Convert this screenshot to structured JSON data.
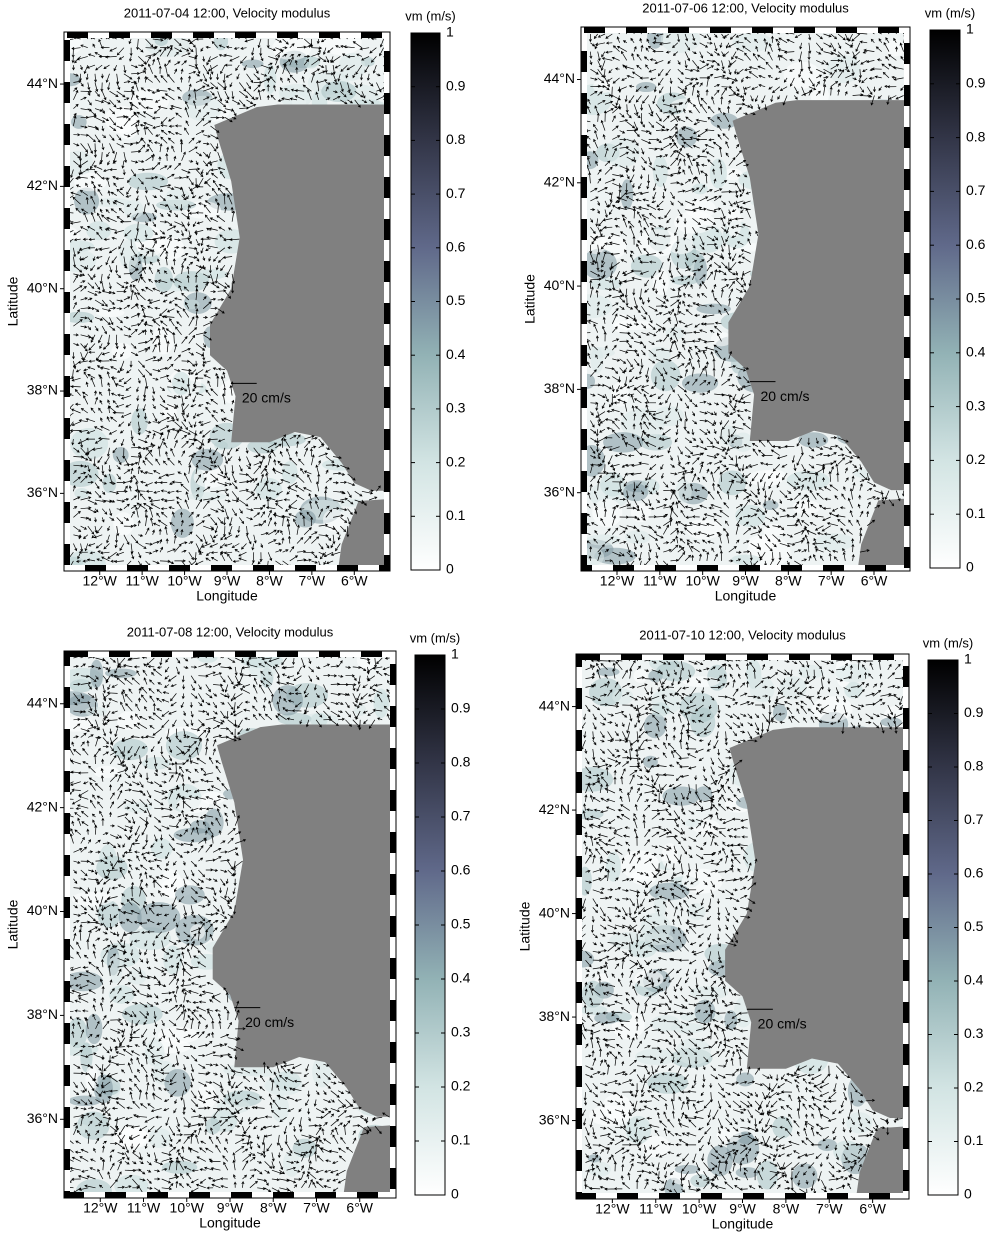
{
  "panels": [
    {
      "title": "2011-07-04 12:00, Velocity modulus",
      "colorbar_label": "vm (m/s)",
      "x_label": "Longitude",
      "y_label": "Latitude",
      "scale_label": "20 cm/s",
      "xlim": [
        -12.7,
        -5.3
      ],
      "ylim": [
        34.6,
        44.9
      ],
      "xticks": [
        {
          "value": -12,
          "label": "12°W"
        },
        {
          "value": -11,
          "label": "11°W"
        },
        {
          "value": -10,
          "label": "10°W"
        },
        {
          "value": -9,
          "label": "9°W"
        },
        {
          "value": -8,
          "label": "8°W"
        },
        {
          "value": -7,
          "label": "7°W"
        },
        {
          "value": -6,
          "label": "6°W"
        }
      ],
      "yticks": [
        {
          "value": 36,
          "label": "36°N"
        },
        {
          "value": 38,
          "label": "38°N"
        },
        {
          "value": 40,
          "label": "40°N"
        },
        {
          "value": 42,
          "label": "42°N"
        },
        {
          "value": 44,
          "label": "44°N"
        }
      ],
      "clim": [
        0,
        1
      ],
      "cticks": [
        0,
        0.1,
        0.2,
        0.3,
        0.4,
        0.5,
        0.6,
        0.7,
        0.8,
        0.9,
        1
      ]
    },
    {
      "title": "2011-07-06 12:00, Velocity modulus",
      "colorbar_label": "vm (m/s)",
      "x_label": "Longitude",
      "y_label": "Latitude",
      "scale_label": "20 cm/s",
      "xlim": [
        -12.7,
        -5.3
      ],
      "ylim": [
        34.6,
        44.9
      ],
      "xticks": [
        {
          "value": -12,
          "label": "12°W"
        },
        {
          "value": -11,
          "label": "11°W"
        },
        {
          "value": -10,
          "label": "10°W"
        },
        {
          "value": -9,
          "label": "9°W"
        },
        {
          "value": -8,
          "label": "8°W"
        },
        {
          "value": -7,
          "label": "7°W"
        },
        {
          "value": -6,
          "label": "6°W"
        }
      ],
      "yticks": [
        {
          "value": 36,
          "label": "36°N"
        },
        {
          "value": 38,
          "label": "38°N"
        },
        {
          "value": 40,
          "label": "40°N"
        },
        {
          "value": 42,
          "label": "42°N"
        },
        {
          "value": 44,
          "label": "44°N"
        }
      ],
      "clim": [
        0,
        1
      ],
      "cticks": [
        0,
        0.1,
        0.2,
        0.3,
        0.4,
        0.5,
        0.6,
        0.7,
        0.8,
        0.9,
        1
      ]
    },
    {
      "title": "2011-07-08 12:00, Velocity modulus",
      "colorbar_label": "vm (m/s)",
      "x_label": "Longitude",
      "y_label": "Latitude",
      "scale_label": "20 cm/s",
      "xlim": [
        -12.7,
        -5.3
      ],
      "ylim": [
        34.6,
        44.9
      ],
      "xticks": [
        {
          "value": -12,
          "label": "12°W"
        },
        {
          "value": -11,
          "label": "11°W"
        },
        {
          "value": -10,
          "label": "10°W"
        },
        {
          "value": -9,
          "label": "9°W"
        },
        {
          "value": -8,
          "label": "8°W"
        },
        {
          "value": -7,
          "label": "7°W"
        },
        {
          "value": -6,
          "label": "6°W"
        }
      ],
      "yticks": [
        {
          "value": 36,
          "label": "36°N"
        },
        {
          "value": 38,
          "label": "38°N"
        },
        {
          "value": 40,
          "label": "40°N"
        },
        {
          "value": 42,
          "label": "42°N"
        },
        {
          "value": 44,
          "label": "44°N"
        }
      ],
      "clim": [
        0,
        1
      ],
      "cticks": [
        0,
        0.1,
        0.2,
        0.3,
        0.4,
        0.5,
        0.6,
        0.7,
        0.8,
        0.9,
        1
      ]
    },
    {
      "title": "2011-07-10 12:00, Velocity modulus",
      "colorbar_label": "vm (m/s)",
      "x_label": "Longitude",
      "y_label": "Latitude",
      "scale_label": "20 cm/s",
      "xlim": [
        -12.7,
        -5.3
      ],
      "ylim": [
        34.6,
        44.9
      ],
      "xticks": [
        {
          "value": -12,
          "label": "12°W"
        },
        {
          "value": -11,
          "label": "11°W"
        },
        {
          "value": -10,
          "label": "10°W"
        },
        {
          "value": -9,
          "label": "9°W"
        },
        {
          "value": -8,
          "label": "8°W"
        },
        {
          "value": -7,
          "label": "7°W"
        },
        {
          "value": -6,
          "label": "6°W"
        }
      ],
      "yticks": [
        {
          "value": 36,
          "label": "36°N"
        },
        {
          "value": 38,
          "label": "38°N"
        },
        {
          "value": 40,
          "label": "40°N"
        },
        {
          "value": 42,
          "label": "42°N"
        },
        {
          "value": 44,
          "label": "44°N"
        }
      ],
      "clim": [
        0,
        1
      ],
      "cticks": [
        0,
        0.1,
        0.2,
        0.3,
        0.4,
        0.5,
        0.6,
        0.7,
        0.8,
        0.9,
        1
      ]
    }
  ]
}
